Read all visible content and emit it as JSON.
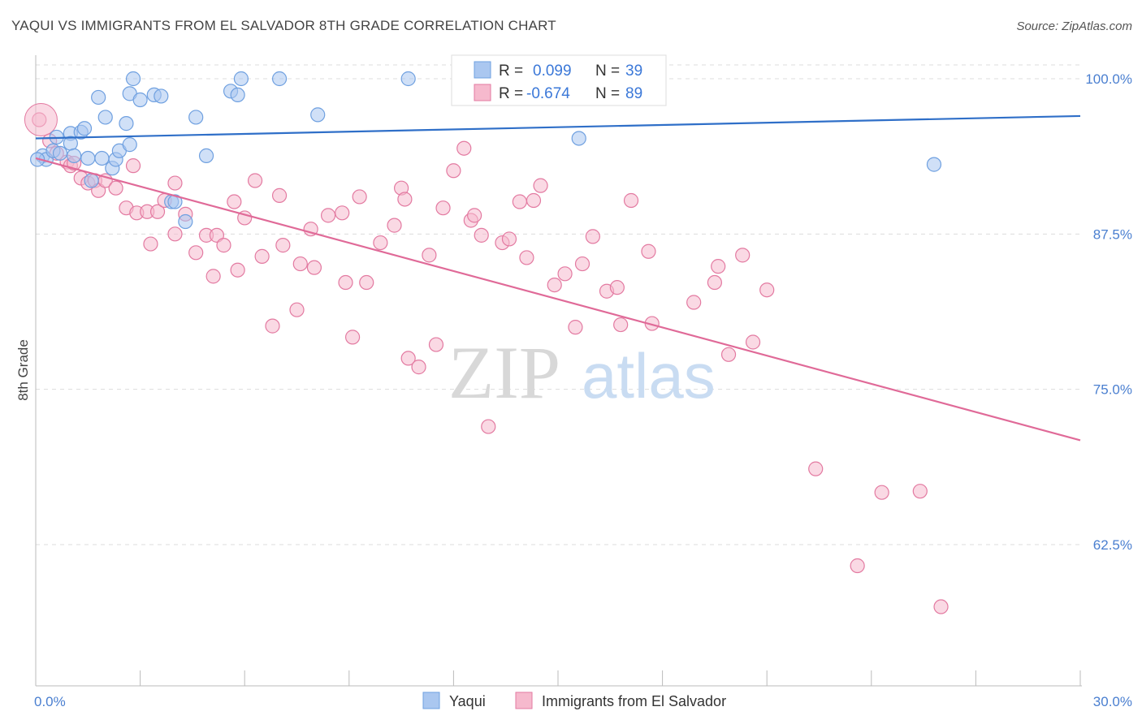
{
  "title": "YAQUI VS IMMIGRANTS FROM EL SALVADOR 8TH GRADE CORRELATION CHART",
  "source": "Source: ZipAtlas.com",
  "watermark": {
    "zip": "ZIP",
    "atlas": "atlas"
  },
  "chart_data": {
    "type": "scatter",
    "ylabel": "8th Grade",
    "xlim": [
      0,
      30
    ],
    "ylim": [
      50,
      102
    ],
    "x_tick_labels": [
      "0.0%",
      "30.0%"
    ],
    "y_ticks": [
      62.5,
      75.0,
      87.5,
      100.0
    ],
    "y_tick_labels": [
      "62.5%",
      "75.0%",
      "87.5%",
      "100.0%"
    ],
    "grid": "horizontal-dashed",
    "legend_position": "top-center",
    "stats": [
      {
        "r_label": "R =",
        "r": "0.099",
        "n_label": "N =",
        "n": "39"
      },
      {
        "r_label": "R =",
        "r": "-0.674",
        "n_label": "N =",
        "n": "89"
      }
    ],
    "series": [
      {
        "name": "Yaqui",
        "color": "#6fa0e0",
        "fill": "#aac7f0",
        "trend": [
          [
            0,
            95.2
          ],
          [
            30,
            97.0
          ]
        ],
        "points": [
          [
            0.2,
            93.8
          ],
          [
            0.3,
            93.5
          ],
          [
            0.5,
            94.2
          ],
          [
            0.6,
            95.3
          ],
          [
            0.7,
            94.0
          ],
          [
            1.0,
            95.6
          ],
          [
            1.0,
            94.8
          ],
          [
            1.1,
            93.8
          ],
          [
            1.3,
            95.7
          ],
          [
            1.4,
            96.0
          ],
          [
            1.5,
            93.6
          ],
          [
            1.6,
            91.8
          ],
          [
            1.8,
            98.5
          ],
          [
            1.9,
            93.6
          ],
          [
            2.0,
            96.9
          ],
          [
            2.2,
            92.8
          ],
          [
            2.3,
            93.5
          ],
          [
            2.4,
            94.2
          ],
          [
            2.6,
            96.4
          ],
          [
            2.7,
            94.7
          ],
          [
            2.7,
            98.8
          ],
          [
            2.8,
            100.0
          ],
          [
            3.0,
            98.3
          ],
          [
            3.4,
            98.7
          ],
          [
            3.6,
            98.6
          ],
          [
            3.9,
            90.1
          ],
          [
            4.0,
            90.1
          ],
          [
            4.3,
            88.5
          ],
          [
            4.6,
            96.9
          ],
          [
            4.9,
            93.8
          ],
          [
            5.6,
            99.0
          ],
          [
            5.8,
            98.7
          ],
          [
            5.9,
            100.0
          ],
          [
            7.0,
            100.0
          ],
          [
            8.1,
            97.1
          ],
          [
            10.7,
            100.0
          ],
          [
            15.6,
            95.2
          ],
          [
            25.8,
            93.1
          ],
          [
            0.05,
            93.5
          ]
        ]
      },
      {
        "name": "Immigrants from El Salvador",
        "color": "#e37aa1",
        "fill": "#f6b9cd",
        "trend": [
          [
            0,
            93.6
          ],
          [
            30,
            70.9
          ]
        ],
        "points": [
          [
            0.1,
            96.7
          ],
          [
            0.4,
            95.0
          ],
          [
            0.6,
            94.0
          ],
          [
            0.9,
            93.3
          ],
          [
            1.0,
            93.0
          ],
          [
            1.1,
            93.2
          ],
          [
            1.3,
            92.0
          ],
          [
            1.5,
            91.6
          ],
          [
            1.7,
            91.8
          ],
          [
            1.8,
            91.0
          ],
          [
            2.0,
            91.8
          ],
          [
            2.3,
            91.2
          ],
          [
            2.6,
            89.6
          ],
          [
            2.8,
            93.0
          ],
          [
            2.9,
            89.2
          ],
          [
            3.2,
            89.3
          ],
          [
            3.3,
            86.7
          ],
          [
            3.5,
            89.3
          ],
          [
            3.7,
            90.2
          ],
          [
            4.0,
            91.6
          ],
          [
            4.0,
            87.5
          ],
          [
            4.3,
            89.1
          ],
          [
            4.6,
            86.0
          ],
          [
            4.9,
            87.4
          ],
          [
            5.1,
            84.1
          ],
          [
            5.2,
            87.4
          ],
          [
            5.4,
            86.6
          ],
          [
            5.7,
            90.1
          ],
          [
            5.8,
            84.6
          ],
          [
            6.0,
            88.8
          ],
          [
            6.3,
            91.8
          ],
          [
            6.5,
            85.7
          ],
          [
            6.8,
            80.1
          ],
          [
            7.0,
            90.6
          ],
          [
            7.1,
            86.6
          ],
          [
            7.5,
            81.4
          ],
          [
            7.6,
            85.1
          ],
          [
            7.9,
            87.9
          ],
          [
            8.0,
            84.8
          ],
          [
            8.4,
            89.0
          ],
          [
            8.8,
            89.2
          ],
          [
            8.9,
            83.6
          ],
          [
            9.1,
            79.2
          ],
          [
            9.3,
            90.5
          ],
          [
            9.5,
            83.6
          ],
          [
            9.9,
            86.8
          ],
          [
            10.3,
            88.2
          ],
          [
            10.5,
            91.2
          ],
          [
            10.6,
            90.3
          ],
          [
            10.7,
            77.5
          ],
          [
            11.0,
            76.8
          ],
          [
            11.3,
            85.8
          ],
          [
            11.5,
            78.6
          ],
          [
            11.7,
            89.6
          ],
          [
            12.0,
            92.6
          ],
          [
            12.3,
            94.4
          ],
          [
            12.5,
            88.6
          ],
          [
            12.6,
            89.0
          ],
          [
            12.8,
            87.4
          ],
          [
            13.0,
            72.0
          ],
          [
            13.4,
            86.8
          ],
          [
            13.6,
            87.1
          ],
          [
            13.9,
            90.1
          ],
          [
            14.1,
            85.6
          ],
          [
            14.3,
            90.2
          ],
          [
            14.5,
            91.4
          ],
          [
            14.9,
            83.4
          ],
          [
            15.2,
            84.3
          ],
          [
            15.5,
            80.0
          ],
          [
            15.7,
            85.1
          ],
          [
            16.0,
            87.3
          ],
          [
            16.4,
            82.9
          ],
          [
            16.7,
            83.2
          ],
          [
            16.8,
            80.2
          ],
          [
            17.1,
            90.2
          ],
          [
            17.6,
            86.1
          ],
          [
            17.7,
            80.3
          ],
          [
            18.9,
            82.0
          ],
          [
            19.5,
            83.6
          ],
          [
            19.6,
            84.9
          ],
          [
            19.9,
            77.8
          ],
          [
            20.3,
            85.8
          ],
          [
            20.6,
            78.8
          ],
          [
            21.0,
            83.0
          ],
          [
            22.4,
            68.6
          ],
          [
            23.6,
            60.8
          ],
          [
            24.3,
            66.7
          ],
          [
            25.4,
            66.8
          ],
          [
            26.0,
            57.5
          ]
        ]
      }
    ]
  },
  "legend": {
    "items": [
      {
        "label": "Yaqui"
      },
      {
        "label": "Immigrants from El Salvador"
      }
    ]
  }
}
